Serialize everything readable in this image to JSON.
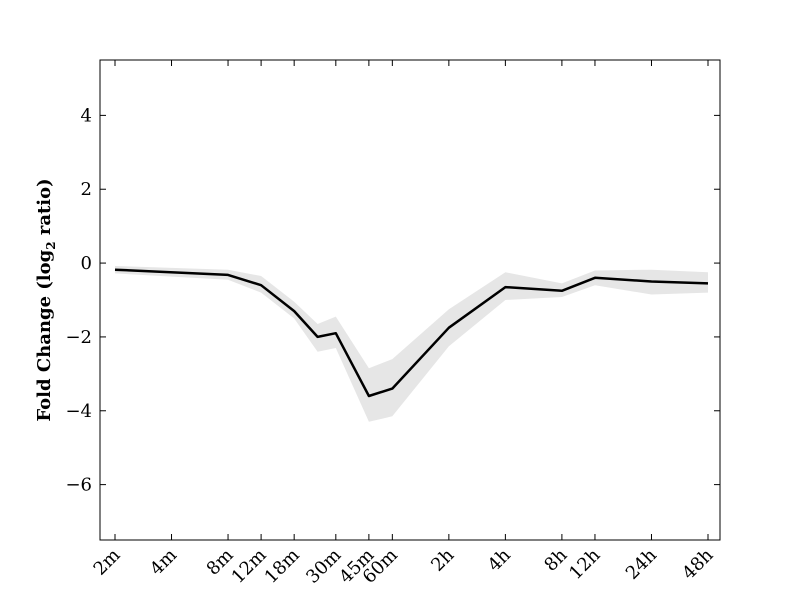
{
  "chart_data": {
    "type": "line",
    "ylabel_main": "Fold Change (log",
    "ylabel_sub": "2",
    "ylabel_tail": " ratio)",
    "ylim": [
      -7.5,
      5.5
    ],
    "yticks": [
      {
        "value": 4,
        "label": "4"
      },
      {
        "value": 2,
        "label": "2"
      },
      {
        "value": 0,
        "label": "0"
      },
      {
        "value": -2,
        "label": "−2"
      },
      {
        "value": -4,
        "label": "−4"
      },
      {
        "value": -6,
        "label": "−6"
      }
    ],
    "x_categories": [
      {
        "label": "2m",
        "pos": 2
      },
      {
        "label": "4m",
        "pos": 4
      },
      {
        "label": "8m",
        "pos": 8
      },
      {
        "label": "12m",
        "pos": 12
      },
      {
        "label": "18m",
        "pos": 18
      },
      {
        "label": "30m",
        "pos": 30
      },
      {
        "label": "45m",
        "pos": 45
      },
      {
        "label": "60m",
        "pos": 60
      },
      {
        "label": "2h",
        "pos": 120
      },
      {
        "label": "4h",
        "pos": 240
      },
      {
        "label": "8h",
        "pos": 480
      },
      {
        "label": "12h",
        "pos": 720
      },
      {
        "label": "24h",
        "pos": 1440
      },
      {
        "label": "48h",
        "pos": 2880
      }
    ],
    "series": [
      {
        "x": [
          2,
          8,
          12,
          18,
          24,
          30,
          45,
          60,
          120,
          240,
          480,
          720,
          1440,
          2880
        ],
        "y": [
          -0.18,
          -0.32,
          -0.6,
          -1.3,
          -2.0,
          -1.9,
          -3.6,
          -3.4,
          -1.75,
          -0.65,
          -0.75,
          -0.4,
          -0.5,
          -0.55
        ],
        "lower": [
          -0.28,
          -0.45,
          -0.8,
          -1.5,
          -2.4,
          -2.3,
          -4.3,
          -4.15,
          -2.25,
          -1.0,
          -0.92,
          -0.6,
          -0.85,
          -0.8
        ],
        "upper": [
          -0.08,
          -0.18,
          -0.35,
          -1.05,
          -1.65,
          -1.45,
          -2.85,
          -2.6,
          -1.25,
          -0.25,
          -0.55,
          -0.2,
          -0.18,
          -0.25
        ]
      }
    ],
    "colors": {
      "line": "#000000",
      "band": "#e6e6e6"
    }
  }
}
